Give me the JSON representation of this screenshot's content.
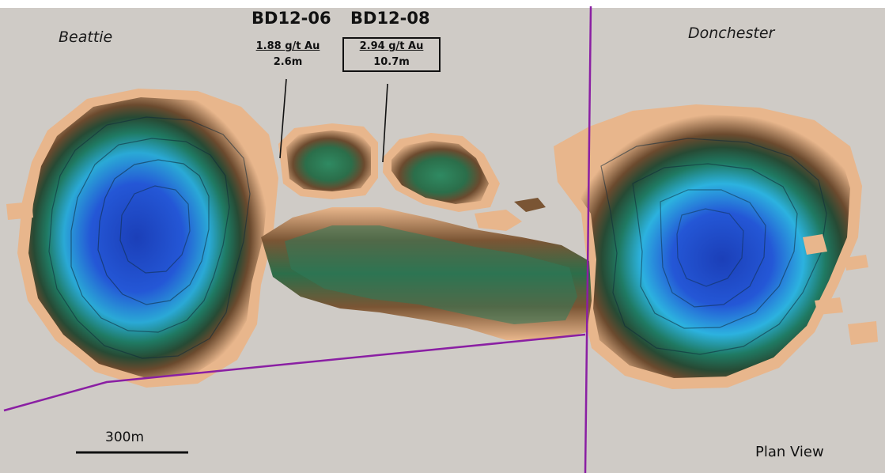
{
  "regions": {
    "left": "Beattie",
    "right": "Donchester"
  },
  "holes": [
    {
      "id": "BD12-06",
      "grade": "1.88 g/t Au",
      "length": "2.6m",
      "boxed": false
    },
    {
      "id": "BD12-08",
      "grade": "2.94 g/t Au",
      "length": "10.7m",
      "boxed": true
    }
  ],
  "scale_bar": {
    "label": "300m",
    "length_m": 300
  },
  "view_label": "Plan View",
  "colors": {
    "background": "#cfcbc6",
    "outer_halo": "#e8b68c",
    "rim": "#6b4a2e",
    "mid": "#2f7a5a",
    "inner": "#2aa9d6",
    "core": "#1f4fc4",
    "boundary_line": "#8a1fa3"
  }
}
